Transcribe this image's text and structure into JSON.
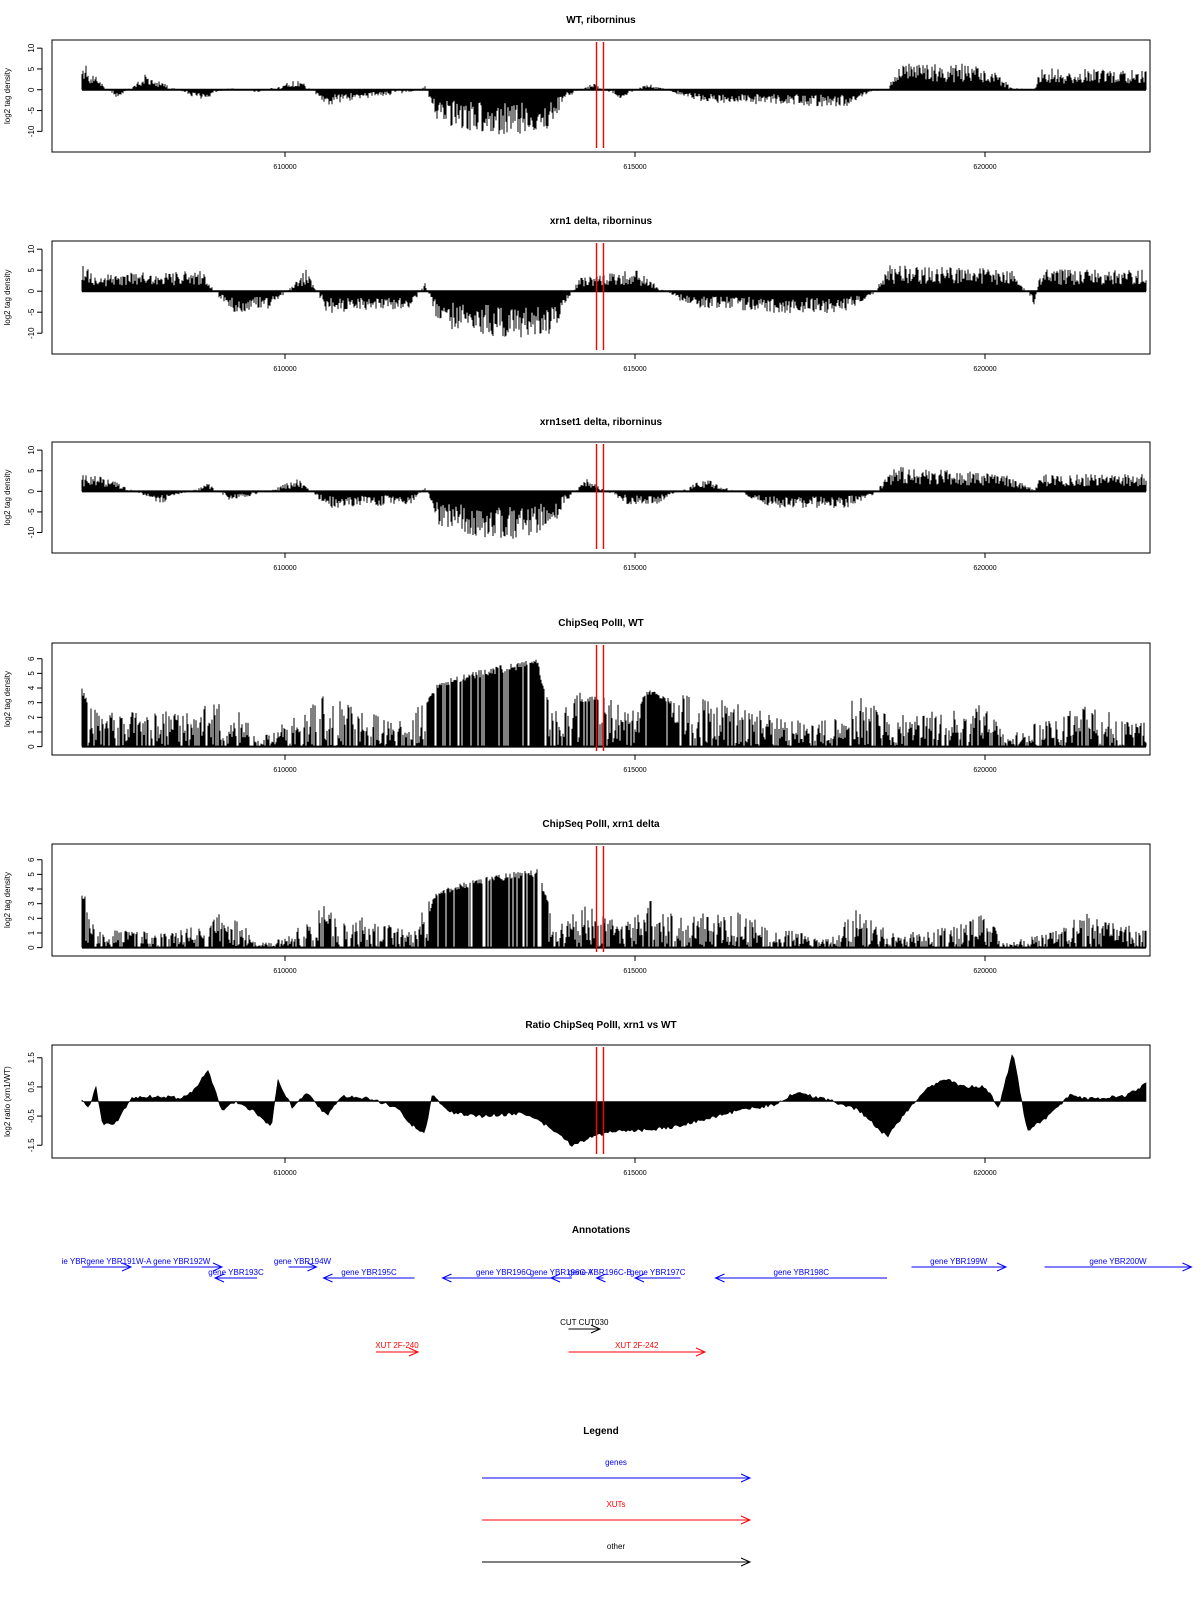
{
  "colors": {
    "ink": "#000000",
    "marker": "#ff0000",
    "gene": "#0000ff",
    "xut": "#ff0000",
    "other": "#000000"
  },
  "markers_x": [
    614450,
    614550
  ],
  "chart_data": [
    {
      "type": "bar",
      "title": "WT, riborninus",
      "ylabel": "log2 tag density",
      "xlim": [
        607100,
        622300
      ],
      "ylim": [
        -14,
        11
      ],
      "yticks": [
        -10,
        -5,
        0,
        5,
        10
      ],
      "ytick_labels": [
        "-10",
        "-5",
        "0",
        "5",
        "10"
      ],
      "xticks": [
        610000,
        615000,
        620000
      ],
      "xtick_labels": [
        "610000",
        "615000",
        "620000"
      ],
      "series": [
        {
          "values": [
            [
              607100,
              8
            ],
            [
              607300,
              3
            ],
            [
              607600,
              -2
            ],
            [
              608000,
              3.5
            ],
            [
              608800,
              -2.5
            ],
            [
              609200,
              0.5
            ],
            [
              609600,
              -0.6
            ],
            [
              610200,
              2.5
            ],
            [
              610600,
              -3.5
            ],
            [
              611800,
              -0.5
            ],
            [
              612000,
              0.8
            ],
            [
              612200,
              -8
            ],
            [
              613000,
              -11
            ],
            [
              613800,
              -9
            ],
            [
              614000,
              -2
            ],
            [
              614400,
              1.5
            ],
            [
              614800,
              -2
            ],
            [
              615200,
              1.8
            ],
            [
              615600,
              -1
            ],
            [
              616000,
              -3
            ],
            [
              617000,
              -3.5
            ],
            [
              618000,
              -4
            ],
            [
              618400,
              -0.5
            ],
            [
              618600,
              0.3
            ],
            [
              618800,
              6
            ],
            [
              620000,
              6
            ],
            [
              620400,
              0.4
            ],
            [
              620700,
              0.2
            ],
            [
              620800,
              5
            ],
            [
              622300,
              4.5
            ]
          ]
        }
      ]
    },
    {
      "type": "bar",
      "title": "xrn1 delta, riborninus",
      "ylabel": "log2 tag density",
      "xlim": [
        607100,
        622300
      ],
      "ylim": [
        -14,
        11
      ],
      "yticks": [
        -10,
        -5,
        0,
        5,
        10
      ],
      "ytick_labels": [
        "-10",
        "-5",
        "0",
        "5",
        "10"
      ],
      "xticks": [
        610000,
        615000,
        620000
      ],
      "xtick_labels": [
        "610000",
        "615000",
        "620000"
      ],
      "series": [
        {
          "values": [
            [
              607100,
              8
            ],
            [
              607300,
              3
            ],
            [
              607500,
              4
            ],
            [
              608800,
              5
            ],
            [
              609200,
              -5
            ],
            [
              609800,
              -4
            ],
            [
              610300,
              5
            ],
            [
              610600,
              -5
            ],
            [
              611800,
              -4
            ],
            [
              612000,
              2
            ],
            [
              612200,
              -8
            ],
            [
              613000,
              -11
            ],
            [
              613800,
              -10
            ],
            [
              614000,
              -4
            ],
            [
              614200,
              3
            ],
            [
              615000,
              5
            ],
            [
              615800,
              -4
            ],
            [
              616200,
              -4
            ],
            [
              617000,
              -5
            ],
            [
              618000,
              -5
            ],
            [
              618400,
              -1
            ],
            [
              618600,
              6
            ],
            [
              620400,
              5
            ],
            [
              620700,
              -3
            ],
            [
              620800,
              5
            ],
            [
              622300,
              5
            ]
          ]
        }
      ]
    },
    {
      "type": "bar",
      "title": "xrn1set1 delta, riborninus",
      "ylabel": "log2 tag density",
      "xlim": [
        607100,
        622300
      ],
      "ylim": [
        -14,
        11
      ],
      "yticks": [
        -10,
        -5,
        0,
        5,
        10
      ],
      "ytick_labels": [
        "-10",
        "-5",
        "0",
        "5",
        "10"
      ],
      "xticks": [
        610000,
        615000,
        620000
      ],
      "xtick_labels": [
        "610000",
        "615000",
        "620000"
      ],
      "series": [
        {
          "values": [
            [
              607100,
              4
            ],
            [
              607500,
              3
            ],
            [
              608200,
              -3
            ],
            [
              608900,
              2
            ],
            [
              609200,
              -2
            ],
            [
              609600,
              -1
            ],
            [
              610200,
              3
            ],
            [
              610600,
              -4
            ],
            [
              611800,
              -3
            ],
            [
              612000,
              1
            ],
            [
              612200,
              -8
            ],
            [
              613000,
              -12
            ],
            [
              613800,
              -9
            ],
            [
              614000,
              -3
            ],
            [
              614300,
              3
            ],
            [
              614900,
              -3
            ],
            [
              615300,
              -3
            ],
            [
              616000,
              3
            ],
            [
              617000,
              -4
            ],
            [
              618000,
              -4
            ],
            [
              618400,
              -1
            ],
            [
              618700,
              6
            ],
            [
              620300,
              4
            ],
            [
              620700,
              0.5
            ],
            [
              620800,
              4
            ],
            [
              622300,
              4
            ]
          ]
        }
      ]
    },
    {
      "type": "bar",
      "title": "ChipSeq PolII, WT",
      "ylabel": "log2 tag density",
      "xlim": [
        607100,
        622300
      ],
      "ylim": [
        -0.3,
        6.8
      ],
      "yticks": [
        0,
        1,
        2,
        3,
        4,
        5,
        6
      ],
      "ytick_labels": [
        "0",
        "1",
        "2",
        "3",
        "4",
        "5",
        "6"
      ],
      "xticks": [
        610000,
        615000,
        620000
      ],
      "xtick_labels": [
        "610000",
        "615000",
        "620000"
      ],
      "series": [
        {
          "values": [
            [
              607100,
              4
            ],
            [
              607300,
              2
            ],
            [
              608500,
              2
            ],
            [
              609000,
              2.5
            ],
            [
              609400,
              2
            ],
            [
              609600,
              0.3
            ],
            [
              610000,
              1.5
            ],
            [
              610600,
              3
            ],
            [
              611200,
              2
            ],
            [
              611800,
              1.5
            ],
            [
              612200,
              4.5
            ],
            [
              613000,
              5.5
            ],
            [
              613600,
              6
            ],
            [
              613800,
              2.5
            ],
            [
              614400,
              3.5
            ],
            [
              614900,
              2
            ],
            [
              615200,
              4
            ],
            [
              615600,
              3
            ],
            [
              616500,
              2.5
            ],
            [
              617200,
              1.5
            ],
            [
              617800,
              1.5
            ],
            [
              618200,
              3
            ],
            [
              618600,
              2
            ],
            [
              619500,
              2
            ],
            [
              620000,
              2.5
            ],
            [
              620300,
              0.5
            ],
            [
              620800,
              1.5
            ],
            [
              621200,
              2.5
            ],
            [
              622300,
              1.5
            ]
          ]
        }
      ]
    },
    {
      "type": "bar",
      "title": "ChipSeq PolII, xrn1 delta",
      "ylabel": "log2 tag density",
      "xlim": [
        607100,
        622300
      ],
      "ylim": [
        -0.3,
        6.8
      ],
      "yticks": [
        0,
        1,
        2,
        3,
        4,
        5,
        6
      ],
      "ytick_labels": [
        "0",
        "1",
        "2",
        "3",
        "4",
        "5",
        "6"
      ],
      "xticks": [
        610000,
        615000,
        620000
      ],
      "xtick_labels": [
        "610000",
        "615000",
        "620000"
      ],
      "series": [
        {
          "values": [
            [
              607100,
              3.8
            ],
            [
              607300,
              1
            ],
            [
              608200,
              1
            ],
            [
              608800,
              1.2
            ],
            [
              609000,
              2
            ],
            [
              609400,
              1.5
            ],
            [
              609600,
              0.2
            ],
            [
              610000,
              0.6
            ],
            [
              610600,
              2.5
            ],
            [
              611300,
              1.5
            ],
            [
              611800,
              1
            ],
            [
              612200,
              4
            ],
            [
              613000,
              5
            ],
            [
              613600,
              5.4
            ],
            [
              613900,
              1.5
            ],
            [
              614300,
              2.5
            ],
            [
              614900,
              1.5
            ],
            [
              615300,
              3
            ],
            [
              615700,
              2
            ],
            [
              616500,
              2
            ],
            [
              617200,
              1
            ],
            [
              617800,
              0.5
            ],
            [
              618200,
              2.5
            ],
            [
              618600,
              1
            ],
            [
              619500,
              1.2
            ],
            [
              620000,
              2
            ],
            [
              620300,
              0.3
            ],
            [
              620800,
              0.8
            ],
            [
              621500,
              2
            ],
            [
              622300,
              1
            ]
          ]
        }
      ]
    },
    {
      "type": "area",
      "title": "Ratio ChipSeq PolII, xrn1 vs WT",
      "ylabel": "log2 ratio (xrn1/WT)",
      "xlim": [
        607100,
        622300
      ],
      "ylim": [
        -1.8,
        1.8
      ],
      "yticks": [
        -1.5,
        -0.5,
        0.5,
        1.5
      ],
      "ytick_labels": [
        "-1.5",
        "-0.5",
        "0.5",
        "1.5"
      ],
      "xticks": [
        610000,
        615000,
        620000
      ],
      "xtick_labels": [
        "610000",
        "615000",
        "620000"
      ],
      "series": [
        {
          "values": [
            [
              607100,
              0
            ],
            [
              607200,
              -0.2
            ],
            [
              607300,
              0.5
            ],
            [
              607400,
              -0.8
            ],
            [
              607600,
              -0.7
            ],
            [
              607800,
              0.1
            ],
            [
              608200,
              0.2
            ],
            [
              608500,
              0.1
            ],
            [
              608700,
              0.4
            ],
            [
              608900,
              1.1
            ],
            [
              609100,
              -0.3
            ],
            [
              609300,
              0
            ],
            [
              609600,
              -0.4
            ],
            [
              609800,
              -0.9
            ],
            [
              609900,
              0.7
            ],
            [
              610100,
              -0.2
            ],
            [
              610300,
              0.3
            ],
            [
              610600,
              -0.5
            ],
            [
              610800,
              0.2
            ],
            [
              611200,
              0.1
            ],
            [
              611600,
              -0.2
            ],
            [
              611800,
              -0.8
            ],
            [
              612000,
              -1.1
            ],
            [
              612100,
              0.2
            ],
            [
              612400,
              -0.4
            ],
            [
              612800,
              -0.5
            ],
            [
              613400,
              -0.4
            ],
            [
              613800,
              -0.9
            ],
            [
              614100,
              -1.5
            ],
            [
              614400,
              -1.2
            ],
            [
              614700,
              -1
            ],
            [
              615000,
              -1
            ],
            [
              615500,
              -0.9
            ],
            [
              616000,
              -0.6
            ],
            [
              616500,
              -0.3
            ],
            [
              617000,
              -0.1
            ],
            [
              617300,
              0.3
            ],
            [
              617700,
              0.1
            ],
            [
              618200,
              -0.3
            ],
            [
              618600,
              -1.2
            ],
            [
              618900,
              -0.3
            ],
            [
              619100,
              0.3
            ],
            [
              619400,
              0.8
            ],
            [
              619700,
              0.5
            ],
            [
              620000,
              0.5
            ],
            [
              620200,
              -0.2
            ],
            [
              620400,
              1.7
            ],
            [
              620600,
              -1
            ],
            [
              620900,
              -0.5
            ],
            [
              621200,
              0.2
            ],
            [
              621500,
              0.1
            ],
            [
              622000,
              0.2
            ],
            [
              622300,
              0.6
            ]
          ]
        }
      ]
    }
  ],
  "annotations": {
    "title": "Annotations",
    "genes": [
      {
        "label": "ie YBRgene YBR191W-A",
        "x0": 607100,
        "x1": 607800,
        "dir": 1,
        "row": 0
      },
      {
        "label": "gene YBR192W",
        "x0": 607950,
        "x1": 609100,
        "dir": 1,
        "row": 0
      },
      {
        "label": "gene YBR193C",
        "x0": 609000,
        "x1": 609600,
        "dir": -1,
        "row": 1
      },
      {
        "label": "gene YBR194W",
        "x0": 610050,
        "x1": 610450,
        "dir": 1,
        "row": 0
      },
      {
        "label": "gene YBR195C",
        "x0": 610550,
        "x1": 611850,
        "dir": -1,
        "row": 1
      },
      {
        "label": "gene YBR196C",
        "x0": 612250,
        "x1": 614000,
        "dir": -1,
        "row": 1
      },
      {
        "label": "gene YBR196C-A",
        "x0": 613800,
        "x1": 614100,
        "dir": -1,
        "row": 1
      },
      {
        "label": "gene YBR196C-B",
        "x0": 614450,
        "x1": 614550,
        "dir": -1,
        "row": 1
      },
      {
        "label": "gene YBR197C",
        "x0": 615000,
        "x1": 615650,
        "dir": -1,
        "row": 1
      },
      {
        "label": "gene YBR198C",
        "x0": 616150,
        "x1": 618600,
        "dir": -1,
        "row": 1
      },
      {
        "label": "gene YBR199W",
        "x0": 618950,
        "x1": 620300,
        "dir": 1,
        "row": 0
      },
      {
        "label": "gene YBR200W",
        "x0": 620850,
        "x1": 622950,
        "dir": 1,
        "row": 0
      }
    ],
    "other": [
      {
        "label": "CUT CUT030",
        "x0": 614050,
        "x1": 614500,
        "dir": 1
      }
    ],
    "xuts": [
      {
        "label": "XUT 2F-240",
        "x0": 611300,
        "x1": 611900,
        "dir": 1
      },
      {
        "label": "XUT 2F-242",
        "x0": 614050,
        "x1": 616000,
        "dir": 1
      }
    ]
  },
  "legend": {
    "title": "Legend",
    "items": [
      {
        "label": "genes",
        "color": "#0000ff"
      },
      {
        "label": "XUTs",
        "color": "#ff0000"
      },
      {
        "label": "other",
        "color": "#000000"
      }
    ]
  }
}
